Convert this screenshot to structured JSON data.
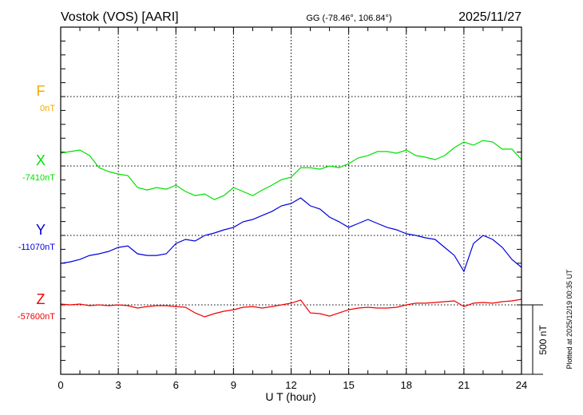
{
  "chart_data": {
    "type": "line",
    "title": "Vostok (VOS)  [AARI]",
    "coords": "GG (-78.46°, 106.84°)",
    "date": "2025/11/27",
    "xlabel": "U T (hour)",
    "xlim": [
      0,
      24
    ],
    "x_ticks": [
      "0",
      "3",
      "6",
      "9",
      "12",
      "15",
      "18",
      "21",
      "24"
    ],
    "scale_bar": "500 nT",
    "scale_bar_nT": 500,
    "plotted_note": "Plotted at 2025/12/19 00:35 UT",
    "grid": true,
    "x": [
      0,
      0.5,
      1,
      1.5,
      2,
      2.5,
      3,
      3.5,
      4,
      4.5,
      5,
      5.5,
      6,
      6.5,
      7,
      7.5,
      8,
      8.5,
      9,
      9.5,
      10,
      10.5,
      11,
      11.5,
      12,
      12.5,
      13,
      13.5,
      14,
      14.5,
      15,
      15.5,
      16,
      16.5,
      17,
      17.5,
      18,
      18.5,
      19,
      19.5,
      20,
      20.5,
      21,
      21.5,
      22,
      22.5,
      23,
      23.5,
      24
    ],
    "series": [
      {
        "name": "F",
        "baseline_label": "0nT",
        "baseline_nT": 0,
        "color": "#f5a800",
        "delta_nT": []
      },
      {
        "name": "X",
        "baseline_label": "-7410nT",
        "baseline_nT": -7410,
        "color": "#00e000",
        "delta_nT": [
          92,
          104,
          115,
          75,
          -12,
          -40,
          -58,
          -69,
          -155,
          -173,
          -155,
          -167,
          -138,
          -184,
          -213,
          -201,
          -242,
          -213,
          -155,
          -184,
          -213,
          -173,
          -138,
          -98,
          -81,
          -12,
          -12,
          -23,
          0,
          -12,
          17,
          58,
          75,
          104,
          104,
          92,
          115,
          75,
          63,
          46,
          75,
          132,
          173,
          150,
          184,
          173,
          121,
          121,
          46
        ]
      },
      {
        "name": "Y",
        "baseline_label": "-11070nT",
        "baseline_nT": -11070,
        "color": "#0000e0",
        "delta_nT": [
          -201,
          -190,
          -173,
          -144,
          -132,
          -115,
          -86,
          -75,
          -132,
          -144,
          -144,
          -132,
          -58,
          -29,
          -40,
          0,
          17,
          40,
          58,
          98,
          115,
          144,
          173,
          213,
          230,
          270,
          213,
          190,
          132,
          98,
          58,
          86,
          115,
          86,
          58,
          40,
          12,
          0,
          -17,
          -29,
          -86,
          -144,
          -259,
          -58,
          0,
          -29,
          -86,
          -173,
          -230
        ]
      },
      {
        "name": "Z",
        "baseline_label": "-57600nT",
        "baseline_nT": -57600,
        "color": "#f00000",
        "delta_nT": [
          6,
          0,
          6,
          -6,
          0,
          -6,
          0,
          -6,
          -23,
          -12,
          -6,
          -6,
          -12,
          -17,
          -58,
          -86,
          -63,
          -46,
          -35,
          -17,
          -12,
          -23,
          -12,
          0,
          12,
          35,
          -58,
          -63,
          -81,
          -58,
          -35,
          -23,
          -17,
          -23,
          -23,
          -17,
          0,
          12,
          12,
          17,
          23,
          29,
          -12,
          12,
          17,
          12,
          23,
          29,
          40
        ]
      }
    ]
  }
}
